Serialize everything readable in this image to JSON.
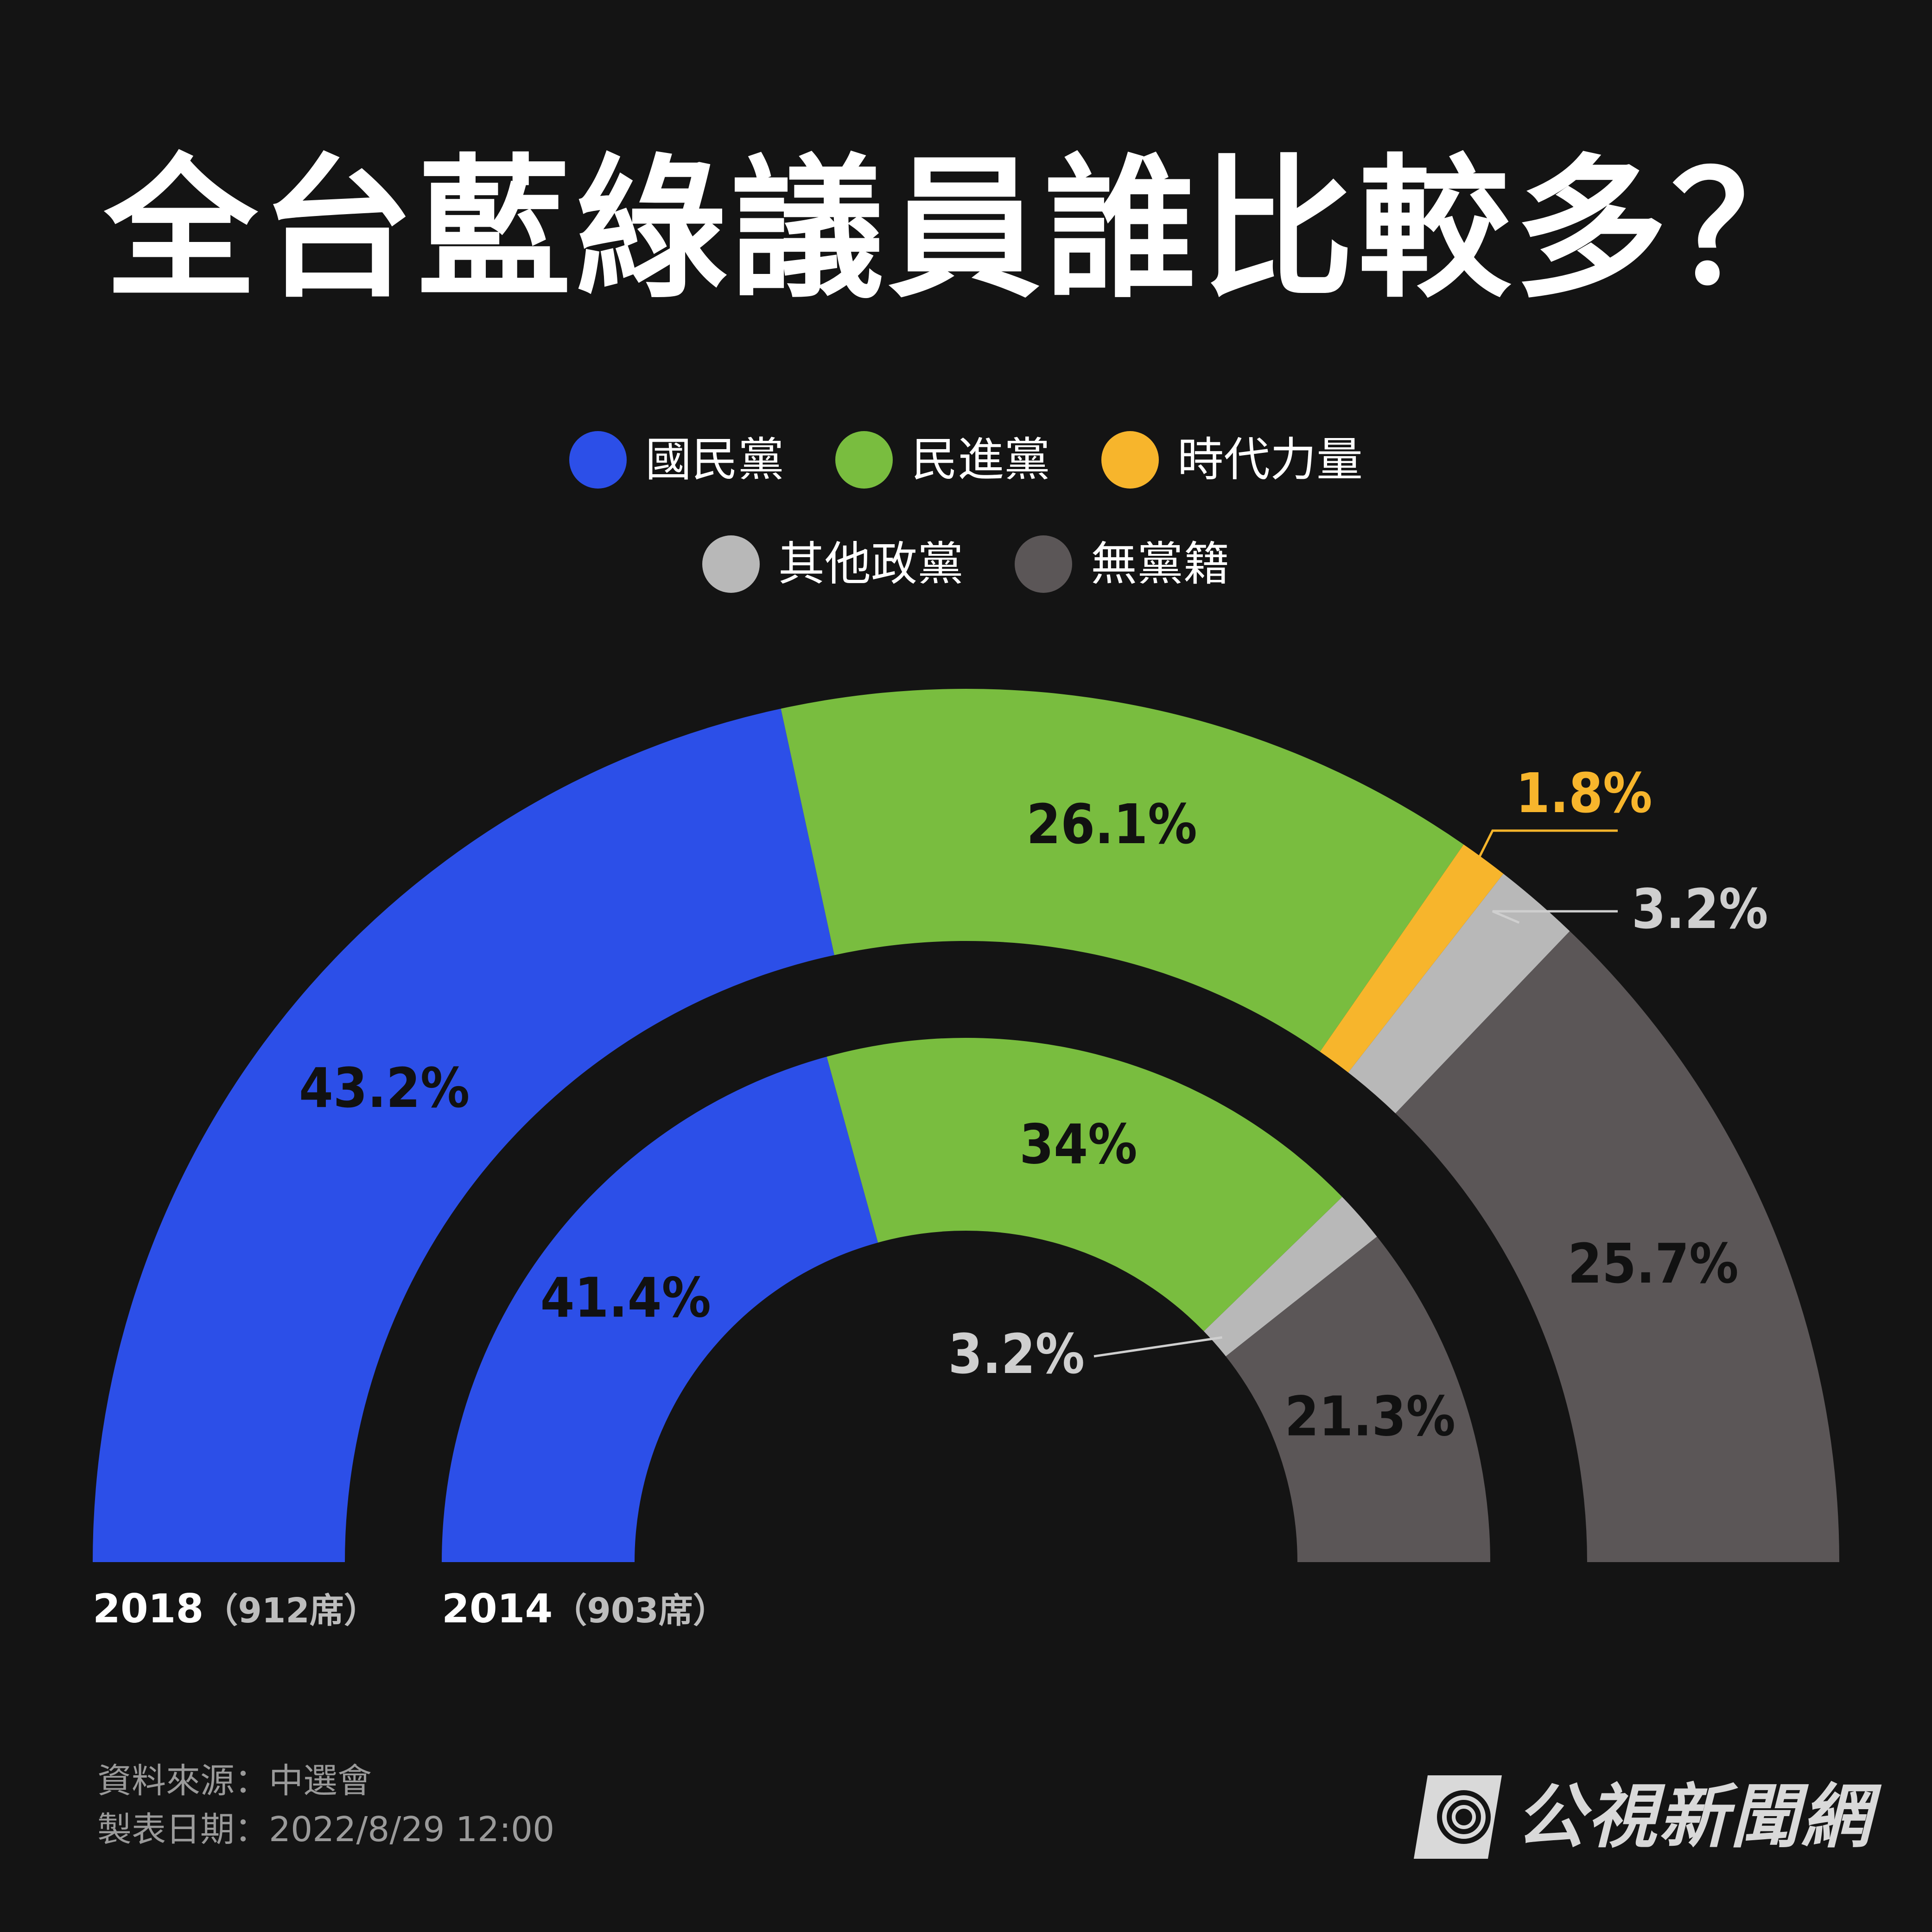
{
  "title": "全台藍綠議員誰比較多？",
  "legend": [
    {
      "label": "國民黨",
      "color": "#2c4fe8"
    },
    {
      "label": "民進黨",
      "color": "#79bd3f"
    },
    {
      "label": "時代力量",
      "color": "#f7b52c"
    },
    {
      "label": "其他政黨",
      "color": "#b8b8b8"
    },
    {
      "label": "無黨籍",
      "color": "#5b5657"
    }
  ],
  "chart_data": {
    "type": "pie",
    "subtype": "half-donut",
    "series": [
      {
        "name": "2018",
        "label_year": "2018",
        "label_seats": "（912席）",
        "slices": [
          {
            "party": "國民黨",
            "value": 43.2,
            "label": "43.2%",
            "color": "#2c4fe8"
          },
          {
            "party": "民進黨",
            "value": 26.1,
            "label": "26.1%",
            "color": "#79bd3f"
          },
          {
            "party": "時代力量",
            "value": 1.8,
            "label": "1.8%",
            "color": "#f7b52c"
          },
          {
            "party": "其他政黨",
            "value": 3.2,
            "label": "3.2%",
            "color": "#b8b8b8"
          },
          {
            "party": "無黨籍",
            "value": 25.7,
            "label": "25.7%",
            "color": "#5b5657"
          }
        ]
      },
      {
        "name": "2014",
        "label_year": "2014",
        "label_seats": "（903席）",
        "slices": [
          {
            "party": "國民黨",
            "value": 41.4,
            "label": "41.4%",
            "color": "#2c4fe8"
          },
          {
            "party": "民進黨",
            "value": 34,
            "label": "34%",
            "color": "#79bd3f"
          },
          {
            "party": "其他政黨",
            "value": 3.2,
            "label": "3.2%",
            "color": "#b8b8b8"
          },
          {
            "party": "無黨籍",
            "value": 21.3,
            "label": "21.3%",
            "color": "#5b5657"
          }
        ]
      }
    ]
  },
  "footer": {
    "source": "資料來源：中選會",
    "date": "製表日期：2022/8/29 12:00"
  },
  "brand": {
    "name": "公視新聞網"
  }
}
